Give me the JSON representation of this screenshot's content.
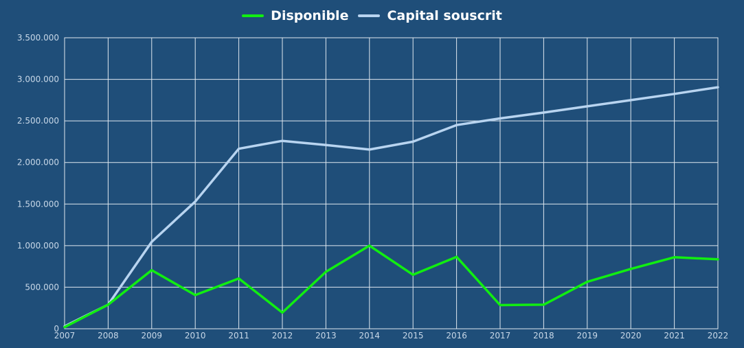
{
  "chart_data": {
    "type": "line",
    "x": [
      "2007",
      "2008",
      "2009",
      "2010",
      "2011",
      "2012",
      "2013",
      "2014",
      "2015",
      "2016",
      "2017",
      "2018",
      "2019",
      "2020",
      "2021",
      "2022"
    ],
    "series": [
      {
        "name": "Disponible",
        "color": "#11ee11",
        "values": [
          20000,
          290000,
          705000,
          405000,
          605000,
          195000,
          685000,
          1000000,
          650000,
          865000,
          285000,
          290000,
          565000,
          720000,
          860000,
          835000
        ]
      },
      {
        "name": "Capital souscrit",
        "color": "#b8d4f0",
        "values": [
          30000,
          290000,
          1045000,
          1530000,
          2165000,
          2260000,
          2210000,
          2155000,
          2250000,
          2450000,
          2530000,
          2600000,
          2675000,
          2750000,
          2825000,
          2905000
        ]
      }
    ],
    "ylim": [
      0,
      3500000
    ],
    "yticks": [
      "0",
      "500.000",
      "1.000.000",
      "1.500.000",
      "2.000.000",
      "2.500.000",
      "3.000.000",
      "3.500.000"
    ],
    "ytick_values": [
      0,
      500000,
      1000000,
      1500000,
      2000000,
      2500000,
      3000000,
      3500000
    ],
    "grid": true,
    "legend_position": "top-center",
    "background_color": "#1f4e79",
    "grid_color": "#e0e8f0"
  }
}
